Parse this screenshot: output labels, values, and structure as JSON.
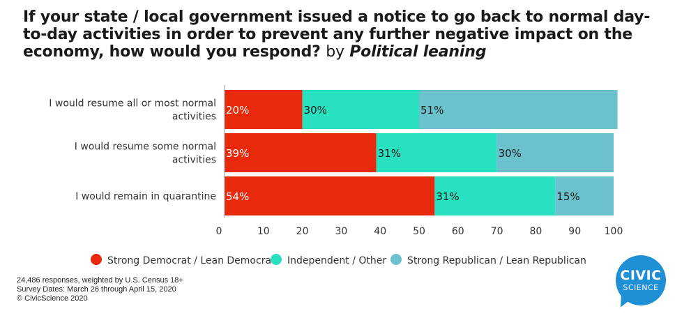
{
  "title": {
    "main": "If your state / local government issued a notice to go back to normal day-to-day activities in order to prevent any further negative impact on the economy, how would you respond?",
    "by": "by",
    "emphasis": "Political leaning"
  },
  "chart_data": {
    "type": "bar",
    "orientation": "horizontal",
    "stacked": true,
    "categories": [
      "I would resume all or most normal activities",
      "I would resume some normal activities",
      "I would remain in quarantine"
    ],
    "series": [
      {
        "name": "Strong Democrat / Lean Democrat",
        "color": "#e8290b",
        "values": [
          20,
          39,
          54
        ]
      },
      {
        "name": "Independent / Other",
        "color": "#29e0c0",
        "values": [
          30,
          31,
          31
        ]
      },
      {
        "name": "Strong Republican / Lean Republican",
        "color": "#6bc2cc",
        "values": [
          51,
          30,
          15
        ]
      }
    ],
    "xlim": [
      0,
      100
    ],
    "xticks": [
      0,
      10,
      20,
      30,
      40,
      50,
      60,
      70,
      80,
      90,
      100
    ],
    "value_suffix": "%",
    "grid": false,
    "legend_position": "bottom"
  },
  "footnote": {
    "line1": "24,486 responses, weighted by U.S. Census 18+",
    "line2": "Survey Dates: March 26 through April 15, 2020",
    "line3": "© CivicScience 2020"
  },
  "logo": {
    "line1": "CIVIC",
    "line2": "SCIENCE"
  }
}
